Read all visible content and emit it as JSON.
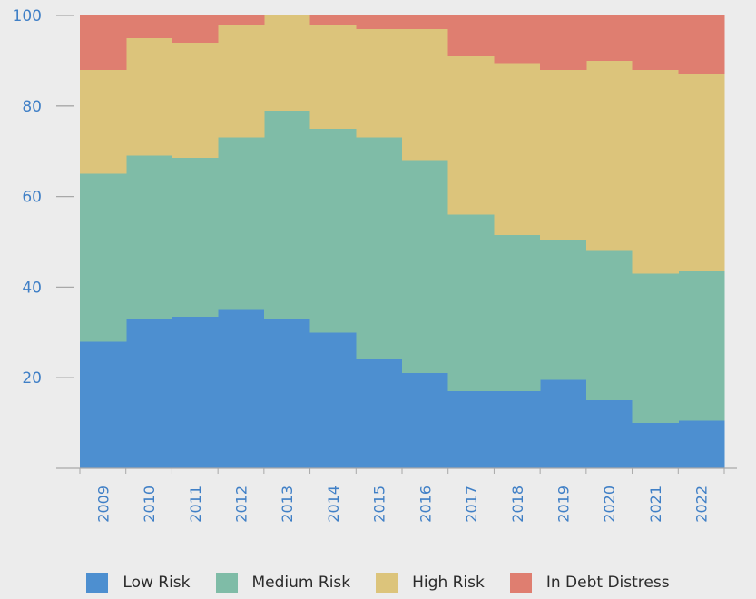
{
  "chart_data": {
    "type": "area",
    "stacked": true,
    "step": true,
    "title": "",
    "xlabel": "",
    "ylabel": "",
    "ylim": [
      0,
      100
    ],
    "yticks": [
      20,
      40,
      60,
      80,
      100
    ],
    "grid": false,
    "legend_position": "bottom",
    "categories": [
      "2009",
      "2010",
      "2011",
      "2012",
      "2013",
      "2014",
      "2015",
      "2016",
      "2017",
      "2018",
      "2019",
      "2020",
      "2021",
      "2022"
    ],
    "series": [
      {
        "name": "Low Risk",
        "color": "#4d8fd0",
        "values": [
          28,
          33,
          33.5,
          35,
          33,
          30,
          24,
          21,
          17,
          17,
          19.5,
          15,
          10,
          10.5
        ]
      },
      {
        "name": "Medium Risk",
        "color": "#7fbca7",
        "values": [
          37,
          36,
          35,
          38,
          46,
          45,
          49,
          47,
          39,
          34.5,
          31,
          33,
          33,
          33
        ]
      },
      {
        "name": "High Risk",
        "color": "#dcc47b",
        "values": [
          23,
          26,
          25.5,
          25,
          21,
          23,
          24,
          29,
          35,
          38,
          37.5,
          42,
          45,
          43.5
        ]
      },
      {
        "name": "In Debt Distress",
        "color": "#df7e70",
        "values": [
          12,
          5,
          6,
          2,
          0,
          2,
          3,
          3,
          9,
          10.5,
          12,
          10,
          12,
          13
        ]
      }
    ]
  }
}
